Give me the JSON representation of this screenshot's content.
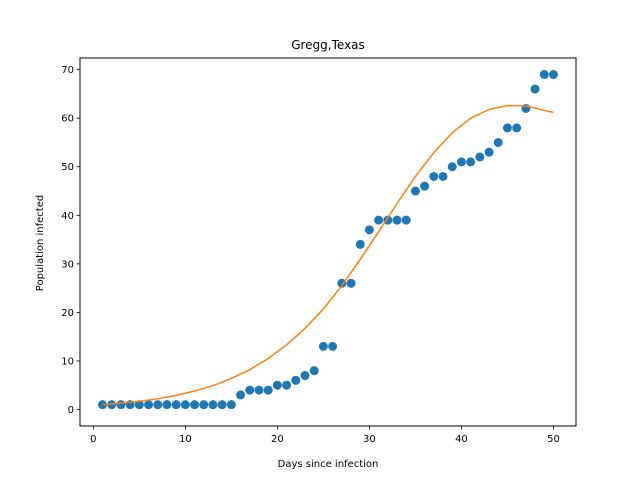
{
  "chart_data": {
    "type": "scatter",
    "title": "Gregg,Texas",
    "xlabel": "Days since infection",
    "ylabel": "Population infected",
    "xlim": [
      -1.45,
      52.45
    ],
    "ylim": [
      -3.4,
      72.4
    ],
    "xticks": [
      0,
      10,
      20,
      30,
      40,
      50
    ],
    "yticks": [
      0,
      10,
      20,
      30,
      40,
      50,
      60,
      70
    ],
    "grid": false,
    "series": [
      {
        "kind": "scatter",
        "color": "#1f77b4",
        "x": [
          1,
          2,
          3,
          4,
          5,
          6,
          7,
          8,
          9,
          10,
          11,
          12,
          13,
          14,
          15,
          16,
          17,
          18,
          19,
          20,
          21,
          22,
          23,
          24,
          25,
          26,
          27,
          28,
          29,
          30,
          31,
          32,
          33,
          34,
          35,
          36,
          37,
          38,
          39,
          40,
          41,
          42,
          43,
          44,
          45,
          46,
          47,
          48,
          49,
          50
        ],
        "y": [
          1,
          1,
          1,
          1,
          1,
          1,
          1,
          1,
          1,
          1,
          1,
          1,
          1,
          1,
          1,
          3,
          4,
          4,
          4,
          5,
          5,
          6,
          7,
          8,
          13,
          13,
          26,
          26,
          34,
          37,
          39,
          39,
          39,
          39,
          45,
          46,
          48,
          48,
          50,
          51,
          51,
          52,
          53,
          55,
          58,
          58,
          62,
          66,
          69,
          69
        ]
      },
      {
        "kind": "line",
        "color": "#ff7f0e",
        "x": [
          1,
          3,
          5,
          7,
          9,
          11,
          13,
          15,
          17,
          19,
          21,
          23,
          25,
          27,
          29,
          31,
          33,
          35,
          37,
          39,
          41,
          43,
          45,
          46,
          47,
          48,
          49,
          50
        ],
        "y": [
          1.0,
          1.3,
          1.7,
          2.2,
          2.9,
          3.8,
          4.9,
          6.4,
          8.2,
          10.5,
          13.3,
          16.7,
          20.7,
          25.5,
          30.9,
          36.6,
          42.4,
          48.0,
          52.9,
          57.0,
          60.0,
          61.8,
          62.6,
          62.6,
          62.5,
          62.1,
          61.6,
          61.2
        ]
      }
    ]
  }
}
